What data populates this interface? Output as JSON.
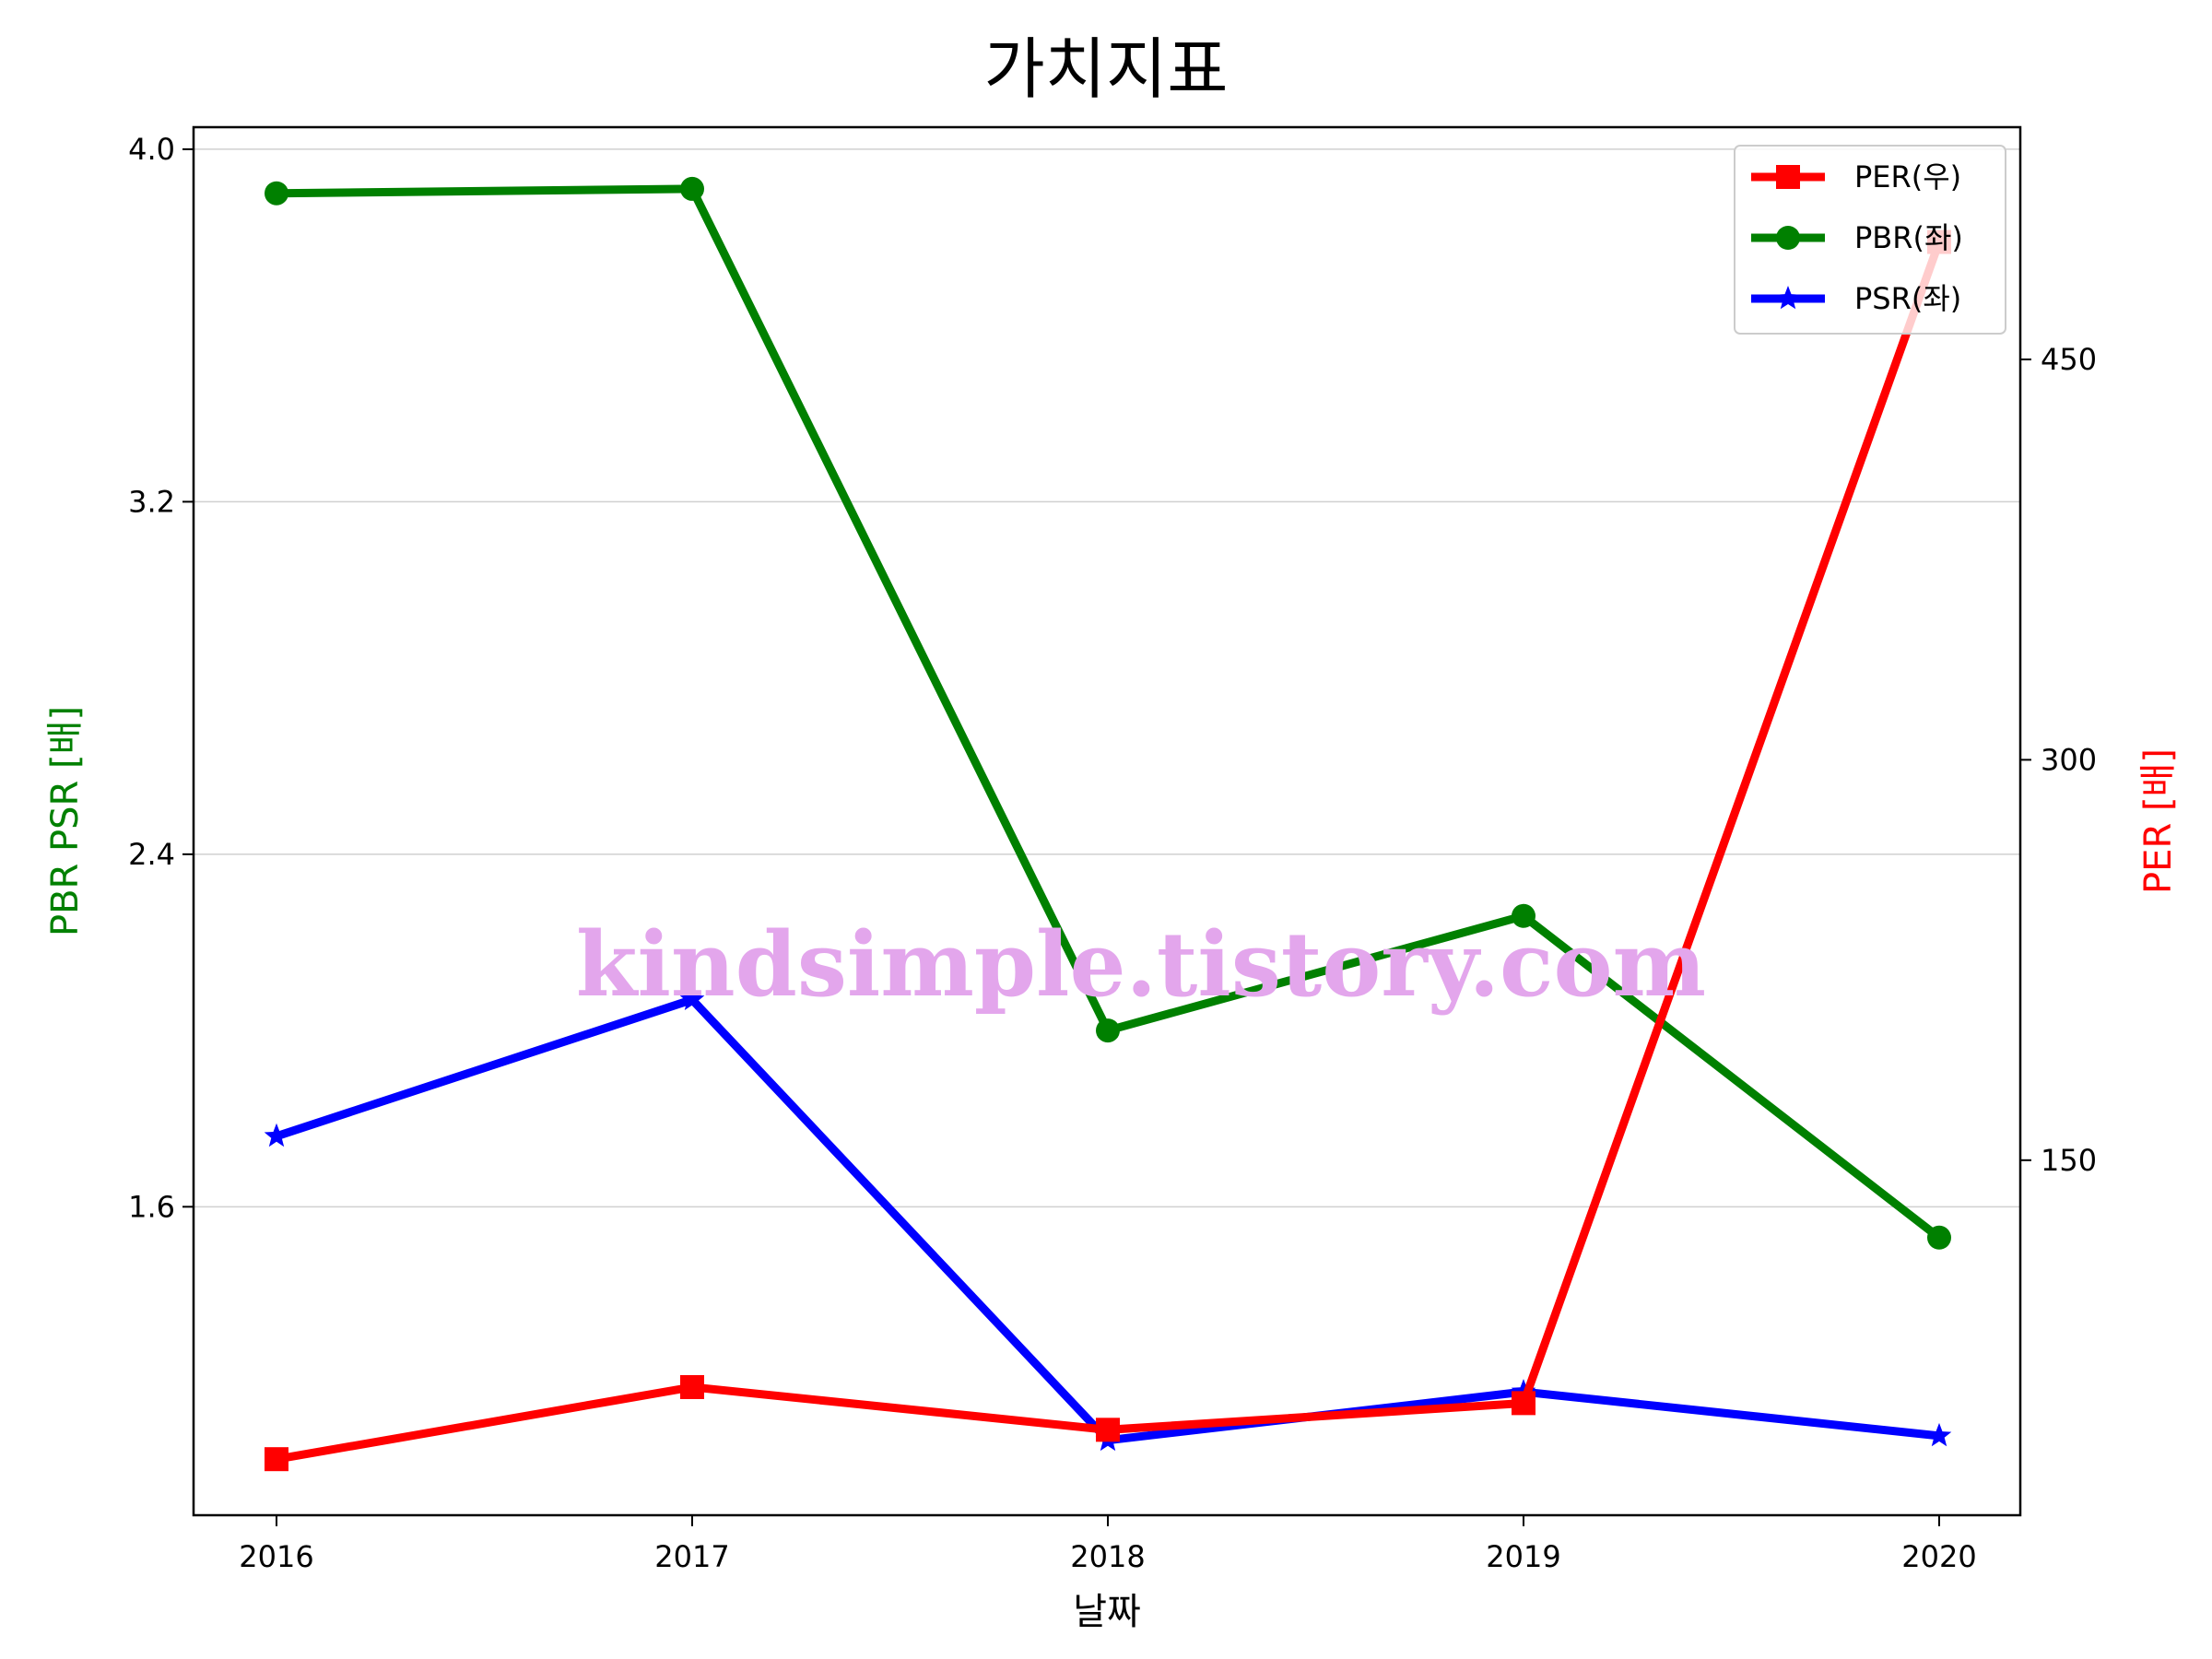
{
  "chart_data": {
    "type": "line",
    "title": "가치지표",
    "xlabel": "날짜",
    "ylabel_left": "PBR PSR [배]",
    "ylabel_right": "PER [배]",
    "categories": [
      "2016",
      "2017",
      "2018",
      "2019",
      "2020"
    ],
    "ylim_left": [
      0.9,
      4.05
    ],
    "yticks_left": [
      "1.6",
      "2.4",
      "3.2",
      "4.0"
    ],
    "ylim_right": [
      17,
      537
    ],
    "yticks_right": [
      "150",
      "300",
      "450"
    ],
    "grid": "horizontal-left",
    "legend_position": "top-right",
    "series": [
      {
        "name": "PER(우)",
        "axis": "right",
        "color": "#ff0000",
        "marker": "square",
        "values": [
          38,
          65,
          49,
          59,
          494
        ]
      },
      {
        "name": "PBR(좌)",
        "axis": "left",
        "color": "#008000",
        "marker": "circle",
        "values": [
          3.9,
          3.91,
          2.0,
          2.26,
          1.53
        ]
      },
      {
        "name": "PSR(좌)",
        "axis": "left",
        "color": "#0000ff",
        "marker": "star",
        "values": [
          1.76,
          2.07,
          1.07,
          1.18,
          1.08
        ]
      }
    ]
  },
  "watermark": "kindsimple.tistory.com"
}
